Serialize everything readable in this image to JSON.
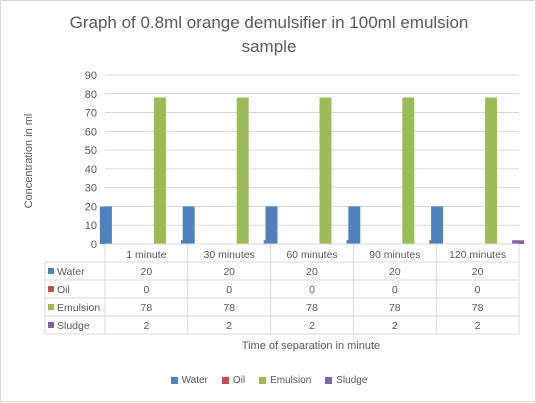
{
  "chart_data": {
    "type": "bar",
    "title": "Graph of 0.8ml orange demulsifier in 100ml emulsion sample",
    "xlabel": "Time of separation in minute",
    "ylabel": "Concentration in ml",
    "categories": [
      "1 minute",
      "30 minutes",
      "60 minutes",
      "90 minutes",
      "120 minutes"
    ],
    "series": [
      {
        "name": "Water",
        "values": [
          20,
          20,
          20,
          20,
          20
        ],
        "color": "#4f81bd"
      },
      {
        "name": "Oil",
        "values": [
          0,
          0,
          0,
          0,
          0
        ],
        "color": "#c0504d"
      },
      {
        "name": "Emulsion",
        "values": [
          78,
          78,
          78,
          78,
          78
        ],
        "color": "#9bbb59"
      },
      {
        "name": "Sludge",
        "values": [
          2,
          2,
          2,
          2,
          2
        ],
        "color": "#8064a2"
      }
    ],
    "ylim": [
      0,
      90
    ],
    "yticks": [
      0,
      10,
      20,
      30,
      40,
      50,
      60,
      70,
      80,
      90
    ],
    "grid": true,
    "legend": "bottom",
    "data_table": true
  }
}
